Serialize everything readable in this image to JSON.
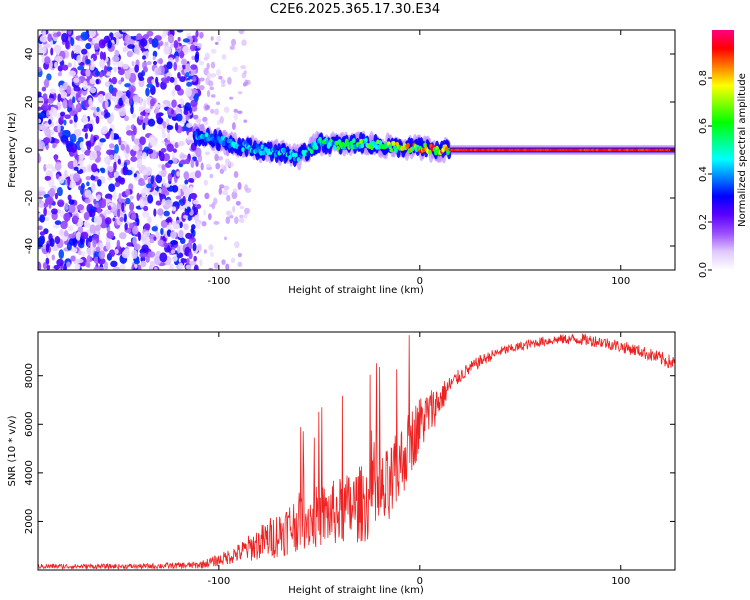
{
  "title": "C2E6.2025.365.17.30.E34",
  "chart_data": [
    {
      "type": "heatmap",
      "title": "C2E6.2025.365.17.30.E34",
      "xlabel": "Height of straight line (km)",
      "ylabel": "Frequency (Hz)",
      "xlim": [
        -190,
        127
      ],
      "ylim": [
        -50,
        50
      ],
      "x_ticks": [
        -100,
        0,
        100
      ],
      "y_ticks": [
        -40,
        -20,
        0,
        20,
        40
      ],
      "description_of_data": {
        "noise_region_x": [
          -190,
          -110
        ],
        "noise_amplitude_range": [
          0.0,
          0.3
        ],
        "sparse_speckle_region_x": [
          -110,
          -85
        ],
        "signal_track": [
          {
            "x": -112,
            "y": 6
          },
          {
            "x": -100,
            "y": 4
          },
          {
            "x": -90,
            "y": 2
          },
          {
            "x": -80,
            "y": 0
          },
          {
            "x": -70,
            "y": -1
          },
          {
            "x": -60,
            "y": -3
          },
          {
            "x": -50,
            "y": 3
          },
          {
            "x": -40,
            "y": 2
          },
          {
            "x": -30,
            "y": 3
          },
          {
            "x": -20,
            "y": 2
          },
          {
            "x": -10,
            "y": 1
          },
          {
            "x": 0,
            "y": 1
          },
          {
            "x": 10,
            "y": 0
          },
          {
            "x": 127,
            "y": 0
          }
        ],
        "track_amplitude": [
          {
            "x": -112,
            "amp": 0.45
          },
          {
            "x": -60,
            "amp": 0.5
          },
          {
            "x": -20,
            "amp": 0.7
          },
          {
            "x": 0,
            "amp": 0.85
          },
          {
            "x": 15,
            "amp": 0.95
          },
          {
            "x": 127,
            "amp": 0.95
          }
        ]
      },
      "colorbar": {
        "label": "Normalized spectral amplitude",
        "range": [
          0,
          1
        ],
        "ticks": [
          "0.0",
          "0.2",
          "0.4",
          "0.6",
          "0.8"
        ],
        "colors": [
          "#ffffff",
          "#e0c8ff",
          "#9a4dff",
          "#5a00ff",
          "#0000ff",
          "#0080ff",
          "#00ffff",
          "#00ff80",
          "#00ff00",
          "#80ff00",
          "#ffff00",
          "#ff8000",
          "#ff0000",
          "#ff0080"
        ]
      }
    },
    {
      "type": "line",
      "xlabel": "Height of straight line (km)",
      "ylabel": "SNR (10 * v/v)",
      "xlim": [
        -190,
        127
      ],
      "ylim": [
        0,
        9800
      ],
      "x_ticks": [
        -100,
        0,
        100
      ],
      "y_ticks": [
        2000,
        4000,
        6000,
        8000
      ],
      "color": "#ee2222",
      "series": [
        {
          "name": "SNR",
          "x": [
            -190,
            -140,
            -110,
            -100,
            -90,
            -80,
            -70,
            -60,
            -50,
            -40,
            -30,
            -20,
            -15,
            -10,
            -5,
            0,
            5,
            10,
            15,
            20,
            30,
            40,
            50,
            60,
            70,
            80,
            90,
            100,
            110,
            120,
            127
          ],
          "values": [
            150,
            150,
            200,
            400,
            700,
            1100,
            1500,
            2000,
            2200,
            2400,
            2700,
            3000,
            3300,
            4300,
            5200,
            6000,
            6500,
            7000,
            7600,
            8000,
            8600,
            9000,
            9200,
            9400,
            9500,
            9500,
            9400,
            9200,
            9000,
            8700,
            8500
          ],
          "noise_spread": [
            100,
            100,
            150,
            250,
            400,
            700,
            1000,
            1200,
            1300,
            1400,
            1600,
            1700,
            1800,
            1600,
            1400,
            1200,
            1000,
            700,
            400,
            300,
            250,
            200,
            200,
            200,
            200,
            250,
            250,
            250,
            250,
            300,
            300
          ]
        }
      ]
    }
  ]
}
